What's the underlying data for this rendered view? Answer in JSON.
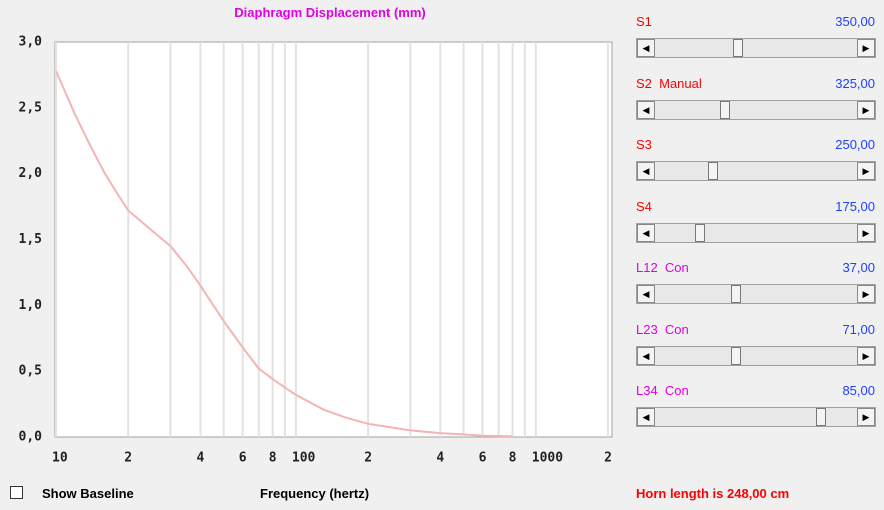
{
  "chart_data": {
    "type": "line",
    "title": "Diaphragm Displacement (mm)",
    "xlabel": "Frequency (hertz)",
    "x": [
      10,
      12,
      14,
      16,
      18,
      20,
      25,
      30,
      35,
      40,
      50,
      60,
      70,
      80,
      100,
      130,
      160,
      200,
      300,
      400,
      500,
      600,
      800
    ],
    "values": [
      2.78,
      2.45,
      2.2,
      2.0,
      1.85,
      1.72,
      1.57,
      1.45,
      1.3,
      1.15,
      0.88,
      0.68,
      0.52,
      0.44,
      0.32,
      0.21,
      0.15,
      0.1,
      0.05,
      0.03,
      0.02,
      0.01,
      0.005
    ],
    "color": "#f4b4b4",
    "xlog": true,
    "grid": true,
    "xlim": [
      10,
      2000
    ],
    "xticks": [
      10,
      {
        "value": 20,
        "label": "2"
      },
      {
        "value": 40,
        "label": "4"
      },
      {
        "value": 60,
        "label": "6"
      },
      {
        "value": 80,
        "label": "8"
      },
      100,
      {
        "value": 200,
        "label": "2"
      },
      {
        "value": 400,
        "label": "4"
      },
      {
        "value": 600,
        "label": "6"
      },
      {
        "value": 800,
        "label": "8"
      },
      1000,
      {
        "value": 2000,
        "label": "2"
      }
    ],
    "xgrid_minor": [
      30,
      50,
      70,
      90,
      300,
      500,
      700,
      900
    ],
    "ylim": [
      0,
      3
    ],
    "yticks": [
      {
        "value": 0,
        "label": "0,0"
      },
      {
        "value": 0.5,
        "label": "0,5"
      },
      {
        "value": 1,
        "label": "1,0"
      },
      {
        "value": 1.5,
        "label": "1,5"
      },
      {
        "value": 2,
        "label": "2,0"
      },
      {
        "value": 2.5,
        "label": "2,5"
      },
      {
        "value": 3,
        "label": "3,0"
      }
    ]
  },
  "sliders": [
    {
      "label": "S1",
      "value": "350,00",
      "color": "#ff0000"
    },
    {
      "label": "S2  Manual",
      "value": "325,00",
      "color": "#ff0000"
    },
    {
      "label": "S3",
      "value": "250,00",
      "color": "#ff0000"
    },
    {
      "label": "S4",
      "value": "175,00",
      "color": "#ff0000"
    },
    {
      "label": "L12  Con",
      "value": "37,00",
      "color": "#e000e0"
    },
    {
      "label": "L23  Con",
      "value": "71,00",
      "color": "#e000e0"
    },
    {
      "label": "L34  Con",
      "value": "85,00",
      "color": "#e000e0"
    }
  ],
  "checkbox": {
    "label": "Show Baseline",
    "checked": false
  },
  "status": "Horn length is 248,00 cm"
}
